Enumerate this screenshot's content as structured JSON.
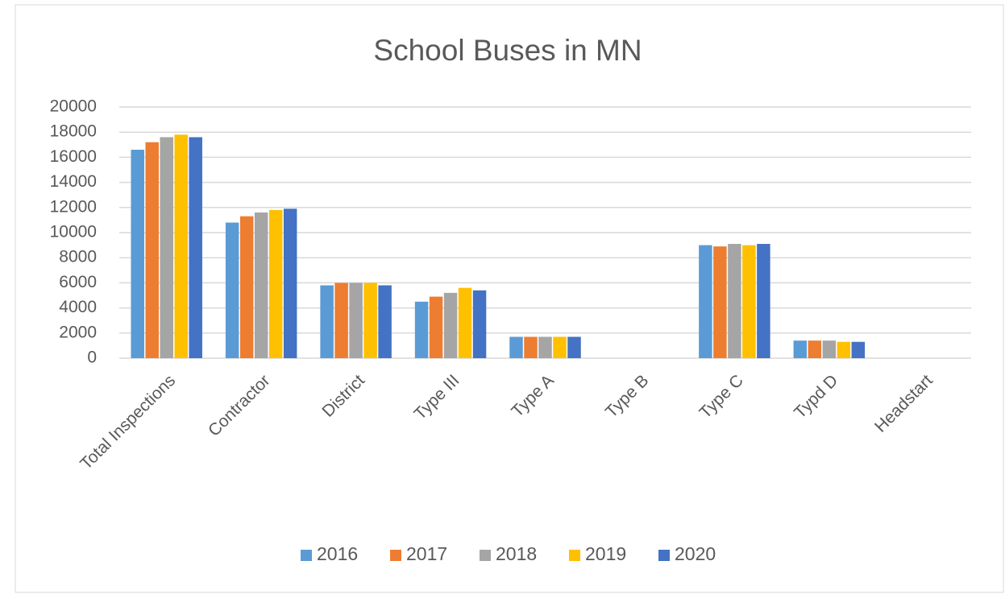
{
  "chart_data": {
    "type": "bar",
    "title": "School Buses in MN",
    "categories": [
      "Total Inspections",
      "Contractor",
      "District",
      "Type III",
      "Type A",
      "Type B",
      "Type C",
      "Typd D",
      "Headstart"
    ],
    "series": [
      {
        "name": "2016",
        "color": "#5b9bd5",
        "values": [
          16600,
          10800,
          5800,
          4500,
          1700,
          0,
          9000,
          1400,
          0
        ]
      },
      {
        "name": "2017",
        "color": "#ed7d31",
        "values": [
          17200,
          11300,
          6000,
          4900,
          1700,
          0,
          8900,
          1400,
          0
        ]
      },
      {
        "name": "2018",
        "color": "#a5a5a5",
        "values": [
          17600,
          11600,
          6000,
          5200,
          1700,
          0,
          9100,
          1400,
          0
        ]
      },
      {
        "name": "2019",
        "color": "#ffc000",
        "values": [
          17800,
          11800,
          6000,
          5600,
          1700,
          0,
          9000,
          1300,
          0
        ]
      },
      {
        "name": "2020",
        "color": "#4472c4",
        "values": [
          17600,
          11900,
          5800,
          5400,
          1700,
          0,
          9100,
          1300,
          0
        ]
      }
    ],
    "ylim": [
      0,
      20000
    ],
    "yticks": [
      0,
      2000,
      4000,
      6000,
      8000,
      10000,
      12000,
      14000,
      16000,
      18000,
      20000
    ],
    "grid": true,
    "legend": "bottom"
  }
}
